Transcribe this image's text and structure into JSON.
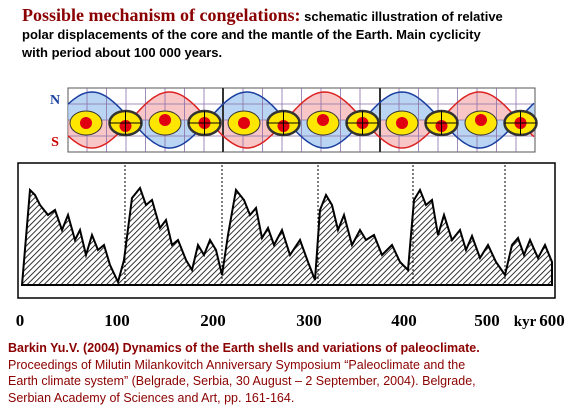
{
  "title": {
    "heading": "Possible mechanism of congelations:",
    "lines": [
      " schematic illustration of relative",
      "polar displacements of the core and the mantle of the Earth. Main cyclicity",
      "with period about 100 000 years."
    ]
  },
  "diagram": {
    "north": "N",
    "south": "S"
  },
  "axis": {
    "labels": [
      "0",
      "100",
      "200",
      "300",
      "400",
      "500",
      "kyr",
      "600"
    ]
  },
  "citation": {
    "title": "Barkin Yu.V. (2004) Dynamics of the Earth shells and variations of paleoclimate.",
    "lines": [
      "Proceedings of Milutin Milankovitch Anniversary Symposium “Paleoclimate and the",
      "Earth climate system” (Belgrade, Serbia, 30 August – 2 September, 2004). Belgrade,",
      "Serbian Academy of Sciences and Art, pp. 161-164."
    ]
  }
}
